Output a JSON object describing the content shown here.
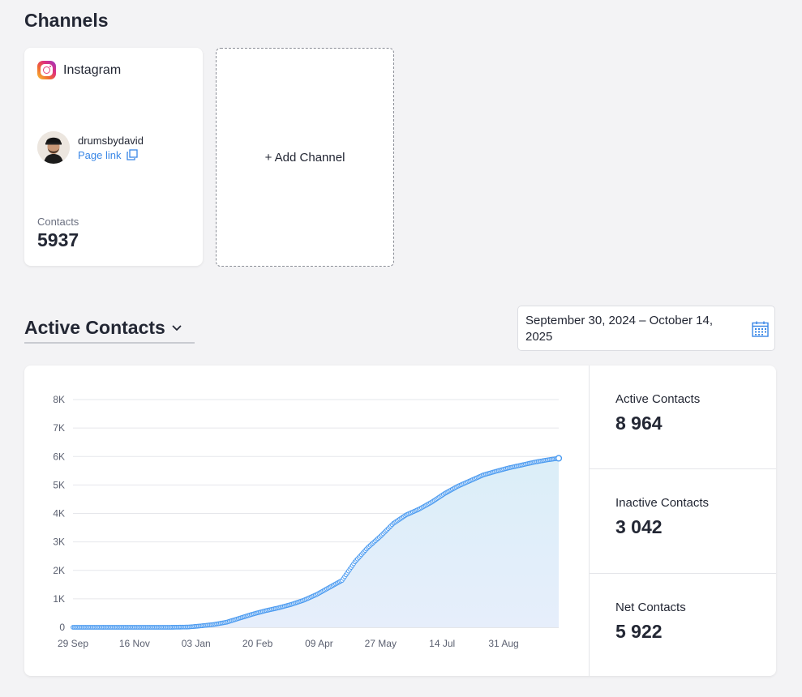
{
  "channels_section": {
    "title": "Channels",
    "card": {
      "platform": "Instagram",
      "platform_icon": "instagram-icon",
      "username": "drumsbydavid",
      "page_link_label": "Page link",
      "contacts_label": "Contacts",
      "contacts_value": "5937"
    },
    "add_channel_label": "+ Add Channel"
  },
  "metric_selector": {
    "label": "Active Contacts",
    "icon": "chevron-down-icon"
  },
  "date_range": {
    "text": "September 30, 2024 – October 14, 2025",
    "icon": "calendar-icon"
  },
  "stats": [
    {
      "label": "Active Contacts",
      "value": "8 964"
    },
    {
      "label": "Inactive Contacts",
      "value": "3 042"
    },
    {
      "label": "Net Contacts",
      "value": "5 922"
    }
  ],
  "colors": {
    "accent": "#3a87e6",
    "line": "#4a9af0",
    "fill_top": "#dbeef8",
    "fill_bottom": "#e6eefb"
  },
  "chart_data": {
    "type": "area",
    "title": "Active Contacts",
    "xlabel": "",
    "ylabel": "",
    "ylim": [
      0,
      8000
    ],
    "y_ticks": [
      0,
      1000,
      2000,
      3000,
      4000,
      5000,
      6000,
      7000,
      8000
    ],
    "y_tick_labels": [
      "0",
      "1K",
      "2K",
      "3K",
      "4K",
      "5K",
      "6K",
      "7K",
      "8K"
    ],
    "x_tick_labels": [
      "29 Sep",
      "16 Nov",
      "03 Jan",
      "20 Feb",
      "09 Apr",
      "27 May",
      "14 Jul",
      "31 Aug"
    ],
    "x_tick_days": [
      0,
      48,
      96,
      144,
      192,
      240,
      288,
      336
    ],
    "xlim_days": [
      0,
      379
    ],
    "grid": true,
    "series": [
      {
        "name": "Active Contacts",
        "days": [
          0,
          20,
          40,
          60,
          75,
          90,
          100,
          110,
          120,
          130,
          140,
          150,
          160,
          170,
          180,
          190,
          200,
          210,
          220,
          230,
          240,
          250,
          260,
          270,
          280,
          290,
          300,
          310,
          320,
          330,
          340,
          350,
          360,
          370,
          379
        ],
        "values": [
          0,
          0,
          0,
          0,
          0,
          10,
          50,
          100,
          180,
          320,
          460,
          580,
          680,
          800,
          950,
          1150,
          1400,
          1650,
          2300,
          2800,
          3200,
          3650,
          3950,
          4150,
          4400,
          4700,
          4950,
          5150,
          5350,
          5480,
          5600,
          5700,
          5800,
          5880,
          5937
        ]
      }
    ]
  }
}
